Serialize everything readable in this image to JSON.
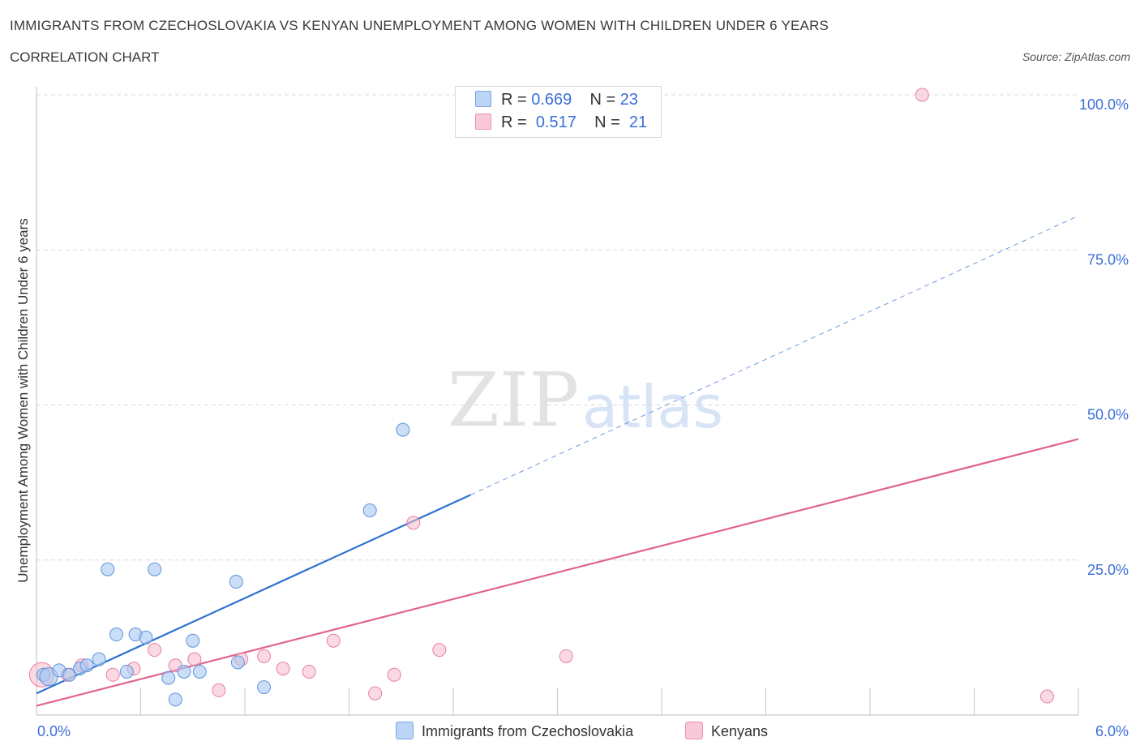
{
  "header": {
    "title": "IMMIGRANTS FROM CZECHOSLOVAKIA VS KENYAN UNEMPLOYMENT AMONG WOMEN WITH CHILDREN UNDER 6 YEARS",
    "subtitle": "CORRELATION CHART",
    "source": "Source: ZipAtlas.com"
  },
  "legend": {
    "rows": [
      {
        "r_label": "R =",
        "r_value": "0.669",
        "n_label": "N =",
        "n_value": "23"
      },
      {
        "r_label": "R =",
        "r_value": "0.517",
        "n_label": "N =",
        "n_value": "21"
      }
    ],
    "bottom": [
      "Immigrants from Czechoslovakia",
      "Kenyans"
    ]
  },
  "watermark": {
    "zip": "ZIP",
    "atlas": "atlas"
  },
  "colors": {
    "blue_fill": "#a9c8f2",
    "blue_stroke": "#5f93dc",
    "blue_line": "#2f72d0",
    "pink_fill": "#f7b9cb",
    "pink_stroke": "#e87ea1",
    "pink_line": "#e0648f",
    "tick_label": "#3a6fd8",
    "grid": "#d8d8d8"
  },
  "chart_data": {
    "type": "scatter",
    "xlabel": "",
    "ylabel": "Unemployment Among Women with Children Under 6 years",
    "xlim": [
      0,
      6
    ],
    "ylim": [
      0,
      100
    ],
    "x_tick_labels": [
      "0.0%",
      "6.0%"
    ],
    "y_ticks": [
      25,
      50,
      75,
      100
    ],
    "y_tick_labels": [
      "25.0%",
      "50.0%",
      "75.0%",
      "100.0%"
    ],
    "grid": true,
    "legend_position": "top-center",
    "series": [
      {
        "name": "Immigrants from Czechoslovakia",
        "color": "#a9c8f2",
        "points": [
          [
            0.04,
            6.5
          ],
          [
            0.07,
            6.2
          ],
          [
            0.13,
            7.2
          ],
          [
            0.19,
            6.5
          ],
          [
            0.25,
            7.5
          ],
          [
            0.29,
            8.0
          ],
          [
            0.36,
            9.0
          ],
          [
            0.41,
            23.5
          ],
          [
            0.46,
            13.0
          ],
          [
            0.52,
            7.0
          ],
          [
            0.57,
            13.0
          ],
          [
            0.63,
            12.5
          ],
          [
            0.68,
            23.5
          ],
          [
            0.76,
            6.0
          ],
          [
            0.8,
            2.5
          ],
          [
            0.85,
            7.0
          ],
          [
            0.9,
            12.0
          ],
          [
            0.94,
            7.0
          ],
          [
            1.16,
            8.5
          ],
          [
            1.15,
            21.5
          ],
          [
            1.31,
            4.5
          ],
          [
            1.92,
            33.0
          ],
          [
            2.11,
            46.0
          ]
        ],
        "trend": {
          "x": [
            0,
            2.5
          ],
          "y": [
            3.5,
            35.5
          ]
        },
        "trend_extension": {
          "x": [
            2.5,
            6.0
          ],
          "y": [
            35.5,
            80.5
          ]
        }
      },
      {
        "name": "Kenyans",
        "color": "#f7b9cb",
        "points": [
          [
            0.03,
            6.5
          ],
          [
            0.18,
            6.5
          ],
          [
            0.26,
            8.0
          ],
          [
            0.44,
            6.5
          ],
          [
            0.56,
            7.5
          ],
          [
            0.68,
            10.5
          ],
          [
            0.8,
            8.0
          ],
          [
            0.91,
            9.0
          ],
          [
            1.05,
            4.0
          ],
          [
            1.18,
            9.0
          ],
          [
            1.31,
            9.5
          ],
          [
            1.42,
            7.5
          ],
          [
            1.57,
            7.0
          ],
          [
            1.71,
            12.0
          ],
          [
            1.95,
            3.5
          ],
          [
            2.06,
            6.5
          ],
          [
            2.17,
            31.0
          ],
          [
            2.32,
            10.5
          ],
          [
            3.05,
            9.5
          ],
          [
            5.1,
            100.0
          ],
          [
            5.82,
            3.0
          ]
        ],
        "trend": {
          "x": [
            0,
            6.0
          ],
          "y": [
            1.5,
            44.5
          ]
        }
      }
    ]
  }
}
